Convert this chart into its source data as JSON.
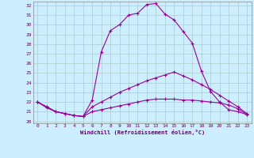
{
  "xlabel": "Windchill (Refroidissement éolien,°C)",
  "bg_color": "#cceeff",
  "grid_color": "#aacccc",
  "line_color": "#990099",
  "xlim": [
    -0.5,
    23.5
  ],
  "ylim": [
    19.8,
    32.4
  ],
  "xticks": [
    0,
    1,
    2,
    3,
    4,
    5,
    6,
    7,
    8,
    9,
    10,
    11,
    12,
    13,
    14,
    15,
    16,
    17,
    18,
    19,
    20,
    21,
    22,
    23
  ],
  "yticks": [
    20,
    21,
    22,
    23,
    24,
    25,
    26,
    27,
    28,
    29,
    30,
    31,
    32
  ],
  "line1_x": [
    0,
    1,
    2,
    3,
    4,
    5,
    6,
    7,
    8,
    9,
    10,
    11,
    12,
    13,
    14,
    15,
    16,
    17,
    18,
    19,
    20,
    21,
    22,
    23
  ],
  "line1_y": [
    22.0,
    21.5,
    21.0,
    20.8,
    20.6,
    20.5,
    22.2,
    27.2,
    29.4,
    30.0,
    31.0,
    31.2,
    32.1,
    32.2,
    31.1,
    30.5,
    29.3,
    28.1,
    25.2,
    23.1,
    22.0,
    21.2,
    21.0,
    20.7
  ],
  "line2_x": [
    0,
    1,
    2,
    3,
    4,
    5,
    6,
    7,
    8,
    9,
    10,
    11,
    12,
    13,
    14,
    15,
    16,
    17,
    18,
    19,
    20,
    21,
    22,
    23
  ],
  "line2_y": [
    22.0,
    21.5,
    21.0,
    20.8,
    20.6,
    20.5,
    21.5,
    22.0,
    22.5,
    23.0,
    23.4,
    23.8,
    24.2,
    24.5,
    24.8,
    25.1,
    24.7,
    24.3,
    23.8,
    23.3,
    22.7,
    22.1,
    21.5,
    20.8
  ],
  "line3_x": [
    0,
    1,
    2,
    3,
    4,
    5,
    6,
    7,
    8,
    9,
    10,
    11,
    12,
    13,
    14,
    15,
    16,
    17,
    18,
    19,
    20,
    21,
    22,
    23
  ],
  "line3_y": [
    22.0,
    21.4,
    21.0,
    20.8,
    20.6,
    20.5,
    21.0,
    21.2,
    21.4,
    21.6,
    21.8,
    22.0,
    22.2,
    22.3,
    22.3,
    22.3,
    22.2,
    22.2,
    22.1,
    22.0,
    21.9,
    21.7,
    21.3,
    20.7
  ]
}
